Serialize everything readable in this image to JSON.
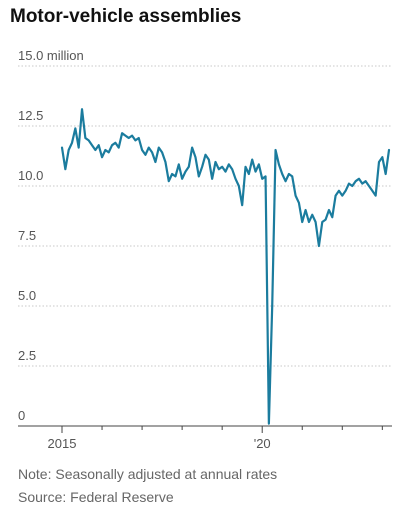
{
  "chart_data": {
    "type": "line",
    "title": "Motor-vehicle assemblies",
    "ylabel": "",
    "xlabel": "",
    "y_tick_labels": [
      "15.0 million",
      "12.5",
      "10.0",
      "7.5",
      "5.0",
      "2.5",
      "0"
    ],
    "y_ticks": [
      15.0,
      12.5,
      10.0,
      7.5,
      5.0,
      2.5,
      0
    ],
    "ylim": [
      0,
      15.0
    ],
    "x_tick_labels": [
      "2015",
      "'20"
    ],
    "xlim": [
      "2015-01",
      "2023-08"
    ],
    "grid": "horizontal",
    "color": "#1b7c9e",
    "series": [
      {
        "values": [
          11.6,
          10.7,
          11.5,
          11.8,
          12.4,
          11.6,
          13.2,
          12.0,
          11.9,
          11.7,
          11.5,
          11.7,
          11.2,
          11.5,
          11.4,
          11.7,
          11.8,
          11.6,
          12.2,
          12.1,
          12.0,
          12.1,
          11.9,
          12.0,
          11.5,
          11.3,
          11.6,
          11.4,
          11.0,
          11.6,
          11.4,
          11.0,
          10.2,
          10.5,
          10.4,
          10.9,
          10.3,
          10.6,
          10.8,
          11.6,
          11.2,
          10.4,
          10.8,
          11.3,
          11.1,
          10.3,
          11.0,
          10.7,
          10.8,
          10.6,
          10.9,
          10.7,
          10.3,
          10.0,
          9.2,
          10.8,
          10.5,
          11.1,
          10.6,
          10.9,
          10.3,
          10.4,
          0.1,
          5.0,
          11.5,
          10.9,
          10.5,
          10.2,
          10.5,
          10.4,
          9.6,
          9.3,
          8.5,
          9.0,
          8.5,
          8.8,
          8.5,
          7.5,
          8.5,
          8.6,
          9.0,
          8.7,
          9.6,
          9.8,
          9.6,
          9.8,
          10.1,
          10.0,
          10.2,
          10.3,
          10.1,
          10.2,
          10.0,
          9.8,
          9.6,
          11.0,
          11.2,
          10.5,
          11.5
        ]
      }
    ]
  },
  "footer": {
    "note": "Note: Seasonally adjusted at annual rates",
    "source": "Source: Federal Reserve"
  }
}
